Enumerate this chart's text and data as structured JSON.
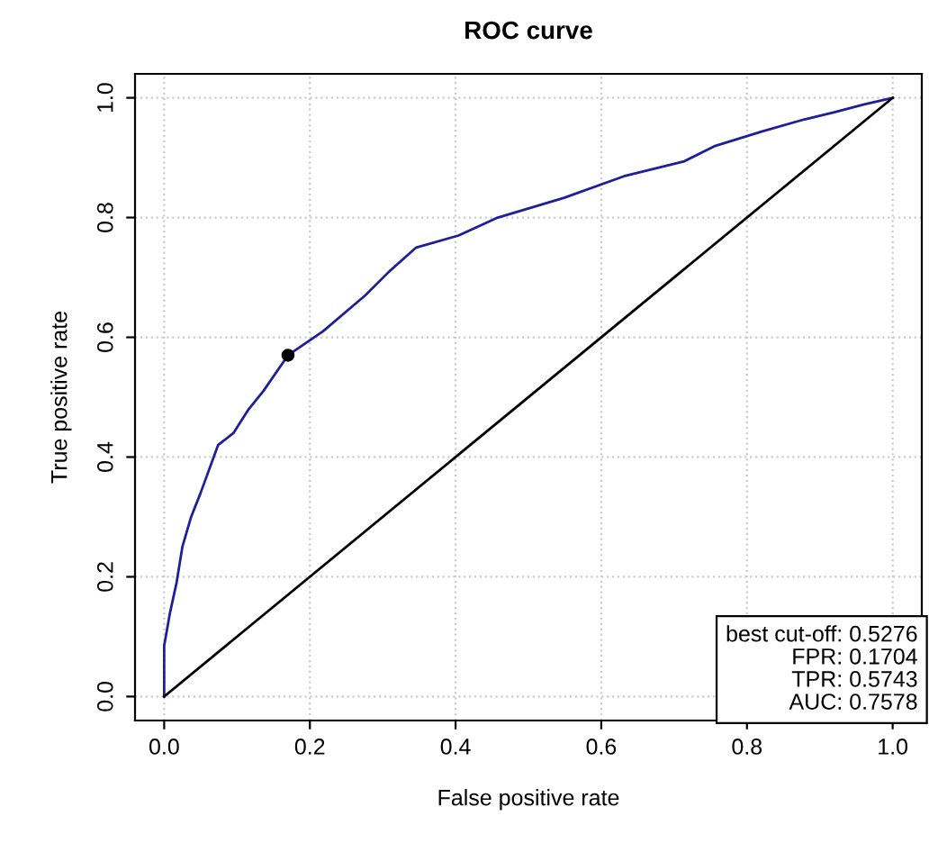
{
  "chart_data": {
    "type": "line",
    "title": "ROC curve",
    "xlabel": "False positive rate",
    "ylabel": "True positive rate",
    "xlim": [
      -0.04,
      1.04
    ],
    "ylim": [
      -0.04,
      1.04
    ],
    "xticks": [
      {
        "value": 0,
        "label": "0.0"
      },
      0.2,
      0.4,
      0.6,
      0.8,
      {
        "value": 1,
        "label": "1.0"
      }
    ],
    "yticks": [
      {
        "value": 0,
        "label": "0.0"
      },
      0.2,
      0.4,
      0.6,
      0.8,
      {
        "value": 1,
        "label": "1.0"
      }
    ],
    "grid": true,
    "legend": false,
    "series": [
      {
        "color": "#1f1f9a",
        "x": [
          0,
          0,
          0.008,
          0.017,
          0.025,
          0.037,
          0.05,
          0.074,
          0.095,
          0.116,
          0.136,
          0.17,
          0.194,
          0.218,
          0.276,
          0.309,
          0.346,
          0.404,
          0.458,
          0.549,
          0.631,
          0.714,
          0.755,
          0.821,
          0.879,
          0.92,
          0.961,
          1
        ],
        "values": [
          0,
          0.085,
          0.14,
          0.19,
          0.25,
          0.3,
          0.34,
          0.42,
          0.44,
          0.48,
          0.51,
          0.57,
          0.59,
          0.61,
          0.67,
          0.71,
          0.75,
          0.77,
          0.8,
          0.833,
          0.869,
          0.894,
          0.919,
          0.944,
          0.964,
          0.976,
          0.989,
          1
        ]
      },
      {
        "color": "#000000",
        "x": [
          0,
          1
        ],
        "values": [
          0,
          1
        ]
      },
      {
        "type": "scatter",
        "color": "#000000",
        "marker": "circle",
        "x": [
          0.17
        ],
        "values": [
          0.57
        ]
      }
    ],
    "annotations": [
      "best cut-off: 0.5276\nFPR: 0.1704\nTPR: 0.5743\nAUC: 0.7578"
    ]
  }
}
